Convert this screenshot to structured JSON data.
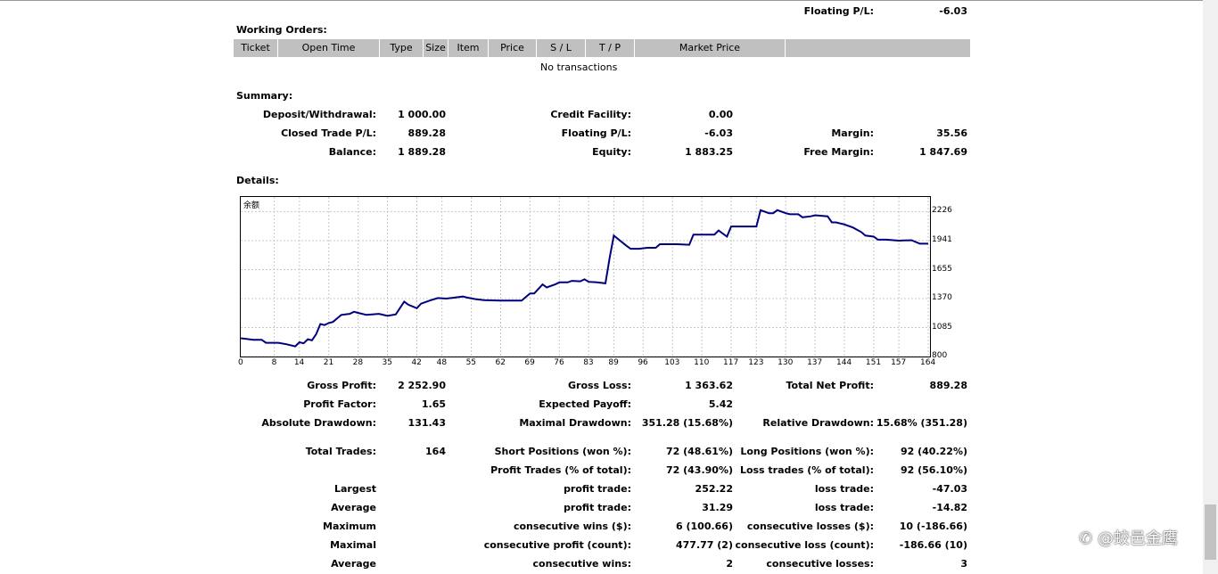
{
  "floating_top": {
    "label": "Floating P/L:",
    "value": "-6.03"
  },
  "working_orders": {
    "title": "Working Orders:",
    "columns": [
      "Ticket",
      "Open Time",
      "Type",
      "Size",
      "Item",
      "Price",
      "S / L",
      "T / P",
      "Market Price",
      ""
    ],
    "empty_text": "No transactions"
  },
  "summary": {
    "title": "Summary:",
    "deposit": {
      "label": "Deposit/Withdrawal:",
      "value": "1 000.00"
    },
    "credit": {
      "label": "Credit Facility:",
      "value": "0.00"
    },
    "closed_pl": {
      "label": "Closed Trade P/L:",
      "value": "889.28"
    },
    "floating": {
      "label": "Floating P/L:",
      "value": "-6.03"
    },
    "margin": {
      "label": "Margin:",
      "value": "35.56"
    },
    "balance": {
      "label": "Balance:",
      "value": "1 889.28"
    },
    "equity": {
      "label": "Equity:",
      "value": "1 883.25"
    },
    "free_margin": {
      "label": "Free Margin:",
      "value": "1 847.69"
    }
  },
  "details": {
    "title": "Details:"
  },
  "chart_data": {
    "type": "line",
    "title": "余额",
    "y_ticks": [
      "2226",
      "1941",
      "1655",
      "1370",
      "1085",
      "800"
    ],
    "x_ticks": [
      "0",
      "8",
      "14",
      "21",
      "28",
      "35",
      "42",
      "48",
      "55",
      "62",
      "69",
      "76",
      "83",
      "89",
      "96",
      "103",
      "110",
      "117",
      "123",
      "130",
      "137",
      "144",
      "151",
      "157",
      "164"
    ],
    "ylim": [
      800,
      2370
    ],
    "xlim": [
      0,
      164
    ],
    "grid": true,
    "color": "#00007f",
    "series": [
      {
        "x": [
          0,
          3,
          5,
          6,
          9,
          11,
          13,
          14,
          15,
          16,
          17,
          18,
          19,
          20,
          21,
          22,
          24,
          26,
          27,
          28,
          30,
          33,
          35,
          37,
          39,
          40,
          42,
          43,
          45,
          47,
          49,
          51,
          53,
          54,
          56,
          58,
          62,
          67,
          69,
          70,
          72,
          73,
          75,
          76,
          78,
          79,
          81,
          82,
          83,
          85,
          87,
          88,
          89,
          92,
          93,
          95,
          97,
          99,
          100,
          102,
          104,
          107,
          108,
          110,
          111,
          113,
          114,
          116,
          117,
          119,
          120,
          123,
          124,
          126,
          127,
          128,
          130,
          131,
          133,
          134,
          136,
          137,
          140,
          141,
          142,
          144,
          146,
          148,
          149,
          151,
          152,
          154,
          157,
          160,
          162,
          164
        ],
        "y": [
          980,
          965,
          965,
          935,
          935,
          920,
          900,
          940,
          930,
          970,
          960,
          1020,
          1120,
          1110,
          1130,
          1140,
          1210,
          1220,
          1240,
          1230,
          1210,
          1220,
          1200,
          1215,
          1340,
          1310,
          1275,
          1320,
          1350,
          1375,
          1370,
          1380,
          1390,
          1380,
          1365,
          1355,
          1350,
          1350,
          1420,
          1420,
          1510,
          1480,
          1510,
          1530,
          1530,
          1545,
          1540,
          1560,
          1535,
          1530,
          1520,
          1770,
          1990,
          1890,
          1860,
          1860,
          1870,
          1870,
          1905,
          1905,
          1905,
          1900,
          2000,
          2000,
          2000,
          2000,
          2040,
          1980,
          2080,
          2080,
          2080,
          2080,
          2240,
          2210,
          2210,
          2240,
          2210,
          2200,
          2200,
          2170,
          2180,
          2190,
          2180,
          2120,
          2120,
          2100,
          2070,
          2025,
          1990,
          1980,
          1950,
          1950,
          1940,
          1945,
          1910,
          1910
        ]
      }
    ]
  },
  "stats": {
    "gross_profit": {
      "label": "Gross Profit:",
      "value": "2 252.90"
    },
    "gross_loss": {
      "label": "Gross Loss:",
      "value": "1 363.62"
    },
    "total_net_profit": {
      "label": "Total Net Profit:",
      "value": "889.28"
    },
    "profit_factor": {
      "label": "Profit Factor:",
      "value": "1.65"
    },
    "expected_payoff": {
      "label": "Expected Payoff:",
      "value": "5.42"
    },
    "absolute_drawdown": {
      "label": "Absolute Drawdown:",
      "value": "131.43"
    },
    "maximal_drawdown": {
      "label": "Maximal Drawdown:",
      "value": "351.28 (15.68%)"
    },
    "relative_drawdown": {
      "label": "Relative Drawdown:",
      "value": "15.68% (351.28)"
    },
    "total_trades": {
      "label": "Total Trades:",
      "value": "164"
    },
    "short_positions": {
      "label": "Short Positions (won %):",
      "value": "72 (48.61%)"
    },
    "long_positions": {
      "label": "Long Positions (won %):",
      "value": "92 (40.22%)"
    },
    "profit_trades": {
      "label": "Profit Trades (% of total):",
      "value": "72 (43.90%)"
    },
    "loss_trades": {
      "label": "Loss trades (% of total):",
      "value": "92 (56.10%)"
    },
    "largest": {
      "label": "Largest",
      "profit_label": "profit trade:",
      "profit_value": "252.22",
      "loss_label": "loss trade:",
      "loss_value": "-47.03"
    },
    "average": {
      "label": "Average",
      "profit_label": "profit trade:",
      "profit_value": "31.29",
      "loss_label": "loss trade:",
      "loss_value": "-14.82"
    },
    "maximum": {
      "label": "Maximum",
      "profit_label": "consecutive wins ($):",
      "profit_value": "6 (100.66)",
      "loss_label": "consecutive losses ($):",
      "loss_value": "10 (-186.66)"
    },
    "maximal": {
      "label": "Maximal",
      "profit_label": "consecutive profit (count):",
      "profit_value": "477.77 (2)",
      "loss_label": "consecutive loss (count):",
      "loss_value": "-186.66 (10)"
    },
    "average_consec": {
      "label": "Average",
      "profit_label": "consecutive wins:",
      "profit_value": "2",
      "loss_label": "consecutive losses:",
      "loss_value": "3"
    }
  },
  "watermark": "@蛟邑金鹰"
}
